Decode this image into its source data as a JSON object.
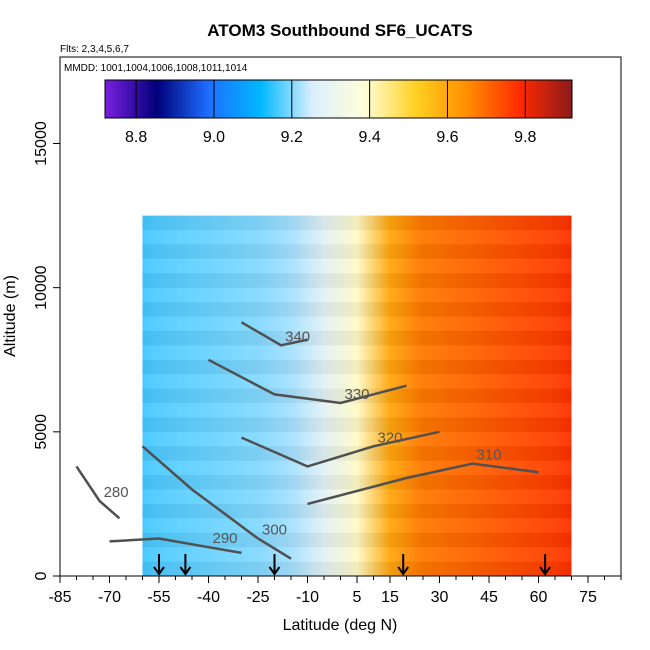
{
  "chart_data": {
    "type": "heatmap",
    "title": "ATOM3 Southbound SF6_UCATS",
    "subtitle_flights": "Flts: 2,3,4,5,6,7",
    "subtitle_dates": "MMDD: 1001,1004,1006,1008,1011,1014",
    "xlabel": "Latitude (deg N)",
    "ylabel": "Altitude (m)",
    "xlim": [
      -85,
      85
    ],
    "ylim": [
      0,
      18000
    ],
    "x_ticks": [
      -85,
      -70,
      -55,
      -40,
      -25,
      -10,
      5,
      15,
      30,
      45,
      60,
      75
    ],
    "y_ticks": [
      0,
      5000,
      10000,
      15000
    ],
    "colorbar": {
      "range": [
        8.72,
        9.92
      ],
      "ticks": [
        "8.8",
        "9.0",
        "9.2",
        "9.4",
        "9.6",
        "9.8"
      ],
      "tick_values": [
        8.8,
        9.0,
        9.2,
        9.4,
        9.6,
        9.8
      ],
      "colors": [
        "#7a1fe0",
        "#00007a",
        "#1d6fff",
        "#00b8ff",
        "#dcefff",
        "#ffffd8",
        "#ffd020",
        "#ff8c00",
        "#ff2a00",
        "#8b1a1a"
      ]
    },
    "sf6_by_latitude": {
      "latitudes": [
        -65,
        -55,
        -45,
        -35,
        -25,
        -15,
        -5,
        5,
        15,
        25,
        35,
        45,
        55,
        65,
        70
      ],
      "values": [
        9.16,
        9.17,
        9.18,
        9.19,
        9.2,
        9.22,
        9.28,
        9.4,
        9.6,
        9.68,
        9.7,
        9.72,
        9.74,
        9.76,
        9.78
      ]
    },
    "data_lat_range": [
      -60,
      70
    ],
    "data_alt_range": [
      0,
      12500
    ],
    "theta_contours": [
      {
        "label": "280",
        "points": [
          [
            -80,
            3800
          ],
          [
            -73,
            2600
          ],
          [
            -67,
            2000
          ]
        ]
      },
      {
        "label": "290",
        "points": [
          [
            -70,
            1200
          ],
          [
            -55,
            1300
          ],
          [
            -40,
            1000
          ],
          [
            -30,
            800
          ]
        ]
      },
      {
        "label": "300",
        "points": [
          [
            -60,
            4500
          ],
          [
            -45,
            3000
          ],
          [
            -25,
            1300
          ],
          [
            -15,
            600
          ]
        ]
      },
      {
        "label": "310",
        "points": [
          [
            -10,
            2500
          ],
          [
            20,
            3400
          ],
          [
            40,
            3900
          ],
          [
            60,
            3600
          ]
        ]
      },
      {
        "label": "320",
        "points": [
          [
            -30,
            4800
          ],
          [
            -10,
            3800
          ],
          [
            10,
            4500
          ],
          [
            30,
            5000
          ]
        ]
      },
      {
        "label": "330",
        "points": [
          [
            -40,
            7500
          ],
          [
            -20,
            6300
          ],
          [
            0,
            6000
          ],
          [
            20,
            6600
          ]
        ]
      },
      {
        "label": "340",
        "points": [
          [
            -30,
            8800
          ],
          [
            -18,
            8000
          ],
          [
            -10,
            8200
          ]
        ]
      }
    ],
    "arrows_at_latitude": [
      -55,
      -47,
      -20,
      19,
      62
    ]
  }
}
